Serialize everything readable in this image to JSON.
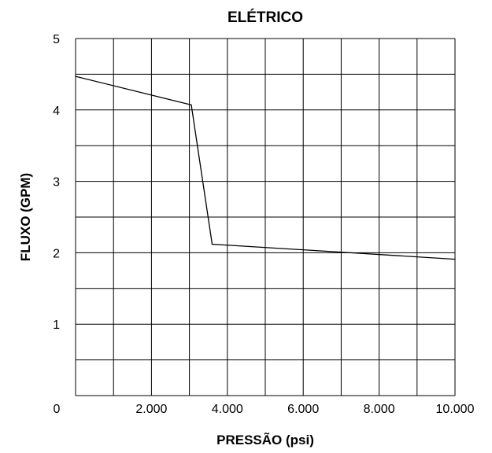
{
  "chart_data": {
    "type": "line",
    "title": "ELÉTRICO",
    "xlabel": "PRESSÃO (psi)",
    "ylabel": "FLUXO (GPM)",
    "xlim": [
      0,
      10000
    ],
    "ylim": [
      0,
      5
    ],
    "grid": true,
    "x_grid_step": 1000,
    "y_grid_step": 0.5,
    "x_ticks": [
      {
        "value": 0,
        "label": "0"
      },
      {
        "value": 2000,
        "label": "2.000"
      },
      {
        "value": 4000,
        "label": "4.000"
      },
      {
        "value": 6000,
        "label": "6.000"
      },
      {
        "value": 8000,
        "label": "8.000"
      },
      {
        "value": 10000,
        "label": "10.000"
      }
    ],
    "y_ticks": [
      {
        "value": 1,
        "label": "1"
      },
      {
        "value": 2,
        "label": "2"
      },
      {
        "value": 3,
        "label": "3"
      },
      {
        "value": 4,
        "label": "4"
      },
      {
        "value": 5,
        "label": "5"
      }
    ],
    "series": [
      {
        "points": [
          {
            "x": 0,
            "y": 4.47
          },
          {
            "x": 3050,
            "y": 4.07
          },
          {
            "x": 3600,
            "y": 2.12
          },
          {
            "x": 10000,
            "y": 1.91
          }
        ]
      }
    ]
  }
}
